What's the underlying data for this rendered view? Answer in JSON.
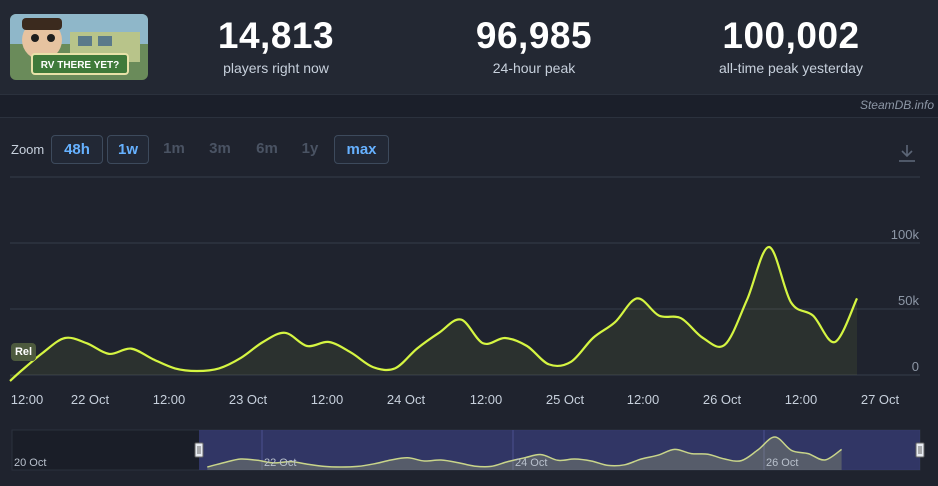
{
  "game": {
    "thumbnail_text": "RV THERE YET?"
  },
  "stats": [
    {
      "value": "14,813",
      "label": "players right now"
    },
    {
      "value": "96,985",
      "label": "24-hour peak"
    },
    {
      "value": "100,002",
      "label": "all-time peak yesterday"
    }
  ],
  "credit": "SteamDB.info",
  "zoom": {
    "label": "Zoom",
    "options": [
      {
        "label": "48h",
        "active": true
      },
      {
        "label": "1w",
        "active": true
      },
      {
        "label": "1m",
        "active": false
      },
      {
        "label": "3m",
        "active": false
      },
      {
        "label": "6m",
        "active": false
      },
      {
        "label": "1y",
        "active": false
      },
      {
        "label": "max",
        "active": true
      }
    ]
  },
  "icons": {
    "download": "download-icon",
    "navigator_handle": "navigator-handle-icon"
  },
  "colors": {
    "series_line": "#d5f542",
    "active_zoom": "#66b1ff",
    "navigator_selection": "#3a3f7a"
  },
  "chart_data": {
    "type": "line",
    "title": "",
    "xlabel": "",
    "ylabel": "",
    "y_unit": "players",
    "ylim": [
      0,
      100000
    ],
    "y_ticks": [
      {
        "value": 0,
        "label": "0"
      },
      {
        "value": 50000,
        "label": "50k"
      },
      {
        "value": 100000,
        "label": "100k"
      }
    ],
    "x_ticks": [
      "12:00",
      "22 Oct",
      "12:00",
      "23 Oct",
      "12:00",
      "24 Oct",
      "12:00",
      "25 Oct",
      "12:00",
      "26 Oct",
      "12:00",
      "27 Oct"
    ],
    "grid": true,
    "legend": "none",
    "annotation": {
      "label": "Rel",
      "date": "2025-10-21 00:00"
    },
    "series": [
      {
        "x": [
          "2025-10-21 00:00",
          "2025-10-21 04:00",
          "2025-10-21 08:00",
          "2025-10-21 12:00",
          "2025-10-21 16:00",
          "2025-10-21 20:00",
          "2025-10-22 00:00",
          "2025-10-22 04:00",
          "2025-10-22 08:00",
          "2025-10-22 12:00",
          "2025-10-22 16:00",
          "2025-10-22 20:00",
          "2025-10-23 00:00",
          "2025-10-23 04:00",
          "2025-10-23 08:00",
          "2025-10-23 12:00",
          "2025-10-23 16:00",
          "2025-10-23 20:00",
          "2025-10-24 00:00",
          "2025-10-24 04:00",
          "2025-10-24 08:00",
          "2025-10-24 12:00",
          "2025-10-24 16:00",
          "2025-10-24 20:00",
          "2025-10-25 00:00",
          "2025-10-25 04:00",
          "2025-10-25 08:00",
          "2025-10-25 12:00",
          "2025-10-25 16:00",
          "2025-10-25 20:00",
          "2025-10-26 00:00",
          "2025-10-26 04:00",
          "2025-10-26 08:00",
          "2025-10-26 12:00",
          "2025-10-26 16:00",
          "2025-10-26 20:00",
          "2025-10-27 00:00",
          "2025-10-27 04:00",
          "2025-10-27 08:00"
        ],
        "y": [
          3000,
          17000,
          28000,
          24000,
          16000,
          20000,
          12000,
          5000,
          3000,
          5000,
          13000,
          25000,
          32000,
          22000,
          25000,
          17000,
          6000,
          5000,
          20000,
          32000,
          42000,
          24000,
          28000,
          22000,
          8000,
          10000,
          28000,
          40000,
          58000,
          45000,
          43000,
          28000,
          23000,
          57000,
          97000,
          55000,
          45000,
          25000,
          58000
        ]
      }
    ]
  },
  "navigator": {
    "labels": [
      "20 Oct",
      "22 Oct",
      "24 Oct",
      "26 Oct"
    ]
  }
}
